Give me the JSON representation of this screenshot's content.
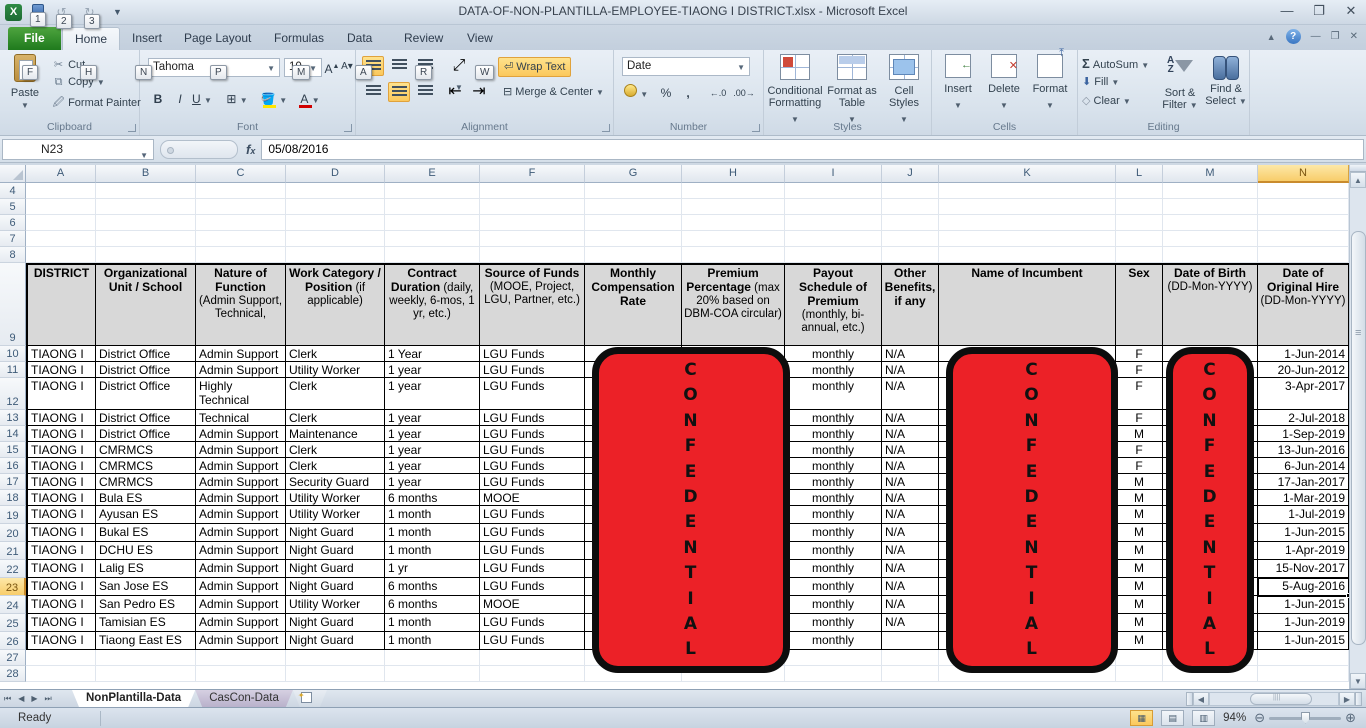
{
  "window": {
    "title": "DATA-OF-NON-PLANTILLA-EMPLOYEE-TIAONG I DISTRICT.xlsx  -  Microsoft Excel",
    "controls": {
      "minimize": "—",
      "restore": "❐",
      "close": "✕"
    }
  },
  "quick_access": {
    "keytips": [
      "1",
      "2",
      "3"
    ]
  },
  "ribbon": {
    "tabs": [
      {
        "label": "File",
        "keytip": "F"
      },
      {
        "label": "Home",
        "keytip": "H"
      },
      {
        "label": "Insert",
        "keytip": "N"
      },
      {
        "label": "Page Layout",
        "keytip": "P"
      },
      {
        "label": "Formulas",
        "keytip": "M"
      },
      {
        "label": "Data",
        "keytip": "A"
      },
      {
        "label": "Review",
        "keytip": "R"
      },
      {
        "label": "View",
        "keytip": "W"
      }
    ],
    "clipboard": {
      "label": "Clipboard",
      "paste": "Paste",
      "cut": "Cut",
      "copy": "Copy",
      "format_painter": "Format Painter"
    },
    "font": {
      "label": "Font",
      "family": "Tahoma",
      "size": "10"
    },
    "alignment": {
      "label": "Alignment",
      "wrap_text": "Wrap Text",
      "merge_center": "Merge & Center"
    },
    "number": {
      "label": "Number",
      "format": "Date"
    },
    "styles": {
      "label": "Styles",
      "conditional": "Conditional Formatting",
      "format_table": "Format as Table",
      "cell_styles": "Cell Styles"
    },
    "cells": {
      "label": "Cells",
      "insert": "Insert",
      "delete": "Delete",
      "format": "Format"
    },
    "editing": {
      "label": "Editing",
      "autosum": "AutoSum",
      "fill": "Fill",
      "clear": "Clear",
      "sort_filter": "Sort & Filter",
      "find_select": "Find & Select"
    }
  },
  "formula_bar": {
    "name_box": "N23",
    "value": "05/08/2016"
  },
  "grid": {
    "columns": [
      "A",
      "B",
      "C",
      "D",
      "E",
      "F",
      "G",
      "H",
      "I",
      "J",
      "K",
      "L",
      "M",
      "N"
    ],
    "selected_column": "N",
    "selected_row": "23",
    "empty_rows_top": [
      "4",
      "5",
      "6",
      "7",
      "8"
    ],
    "header_row_number": "9",
    "empty_rows_bottom": [
      "27",
      "28"
    ],
    "headers": [
      {
        "title": "DISTRICT",
        "note": ""
      },
      {
        "title": "Organizational Unit /  School",
        "note": ""
      },
      {
        "title": "Nature of Function",
        "note": "(Admin Support, Technical,"
      },
      {
        "title": "Work Category / Position",
        "note": "(if applicable)"
      },
      {
        "title": "Contract Duration",
        "note": "(daily, weekly, 6-mos, 1 yr, etc.)"
      },
      {
        "title": "Source of Funds",
        "note": "(MOOE, Project, LGU, Partner, etc.)"
      },
      {
        "title": "Monthly Compensation Rate",
        "note": ""
      },
      {
        "title": "Premium Percentage",
        "note": "(max 20% based on DBM-COA circular)"
      },
      {
        "title": "Payout Schedule of Premium",
        "note": "(monthly, bi-annual, etc.)"
      },
      {
        "title": "Other Benefits, if any",
        "note": ""
      },
      {
        "title": "Name of Incumbent",
        "note": ""
      },
      {
        "title": "Sex",
        "note": ""
      },
      {
        "title": "Date of Birth",
        "note": "(DD-Mon-YYYY)"
      },
      {
        "title": "Date of Original Hire",
        "note": "(DD-Mon-YYYY)"
      }
    ],
    "rows": [
      {
        "n": "10",
        "cells": [
          "TIAONG I",
          "District Office",
          "Admin Support",
          "Clerk",
          "1 Year",
          "LGU Funds",
          "",
          "",
          "monthly",
          "N/A",
          "",
          "F",
          "",
          "1-Jun-2014"
        ]
      },
      {
        "n": "11",
        "cells": [
          "TIAONG I",
          "District Office",
          "Admin Support",
          "Utility Worker",
          "1 year",
          "LGU Funds",
          "",
          "",
          "monthly",
          "N/A",
          "",
          "F",
          "",
          "20-Jun-2012"
        ]
      },
      {
        "n": "12",
        "cells": [
          "TIAONG I",
          "District Office",
          "Highly Technical",
          "Clerk",
          "1 year",
          "LGU Funds",
          "",
          "",
          "monthly",
          "N/A",
          "",
          "F",
          "",
          "3-Apr-2017"
        ]
      },
      {
        "n": "13",
        "cells": [
          "TIAONG I",
          "District Office",
          "Technical",
          "Clerk",
          "1 year",
          "LGU Funds",
          "",
          "",
          "monthly",
          "N/A",
          "",
          "F",
          "",
          "2-Jul-2018"
        ]
      },
      {
        "n": "14",
        "cells": [
          "TIAONG I",
          "District Office",
          "Admin Support",
          "Maintenance",
          "1 year",
          "LGU Funds",
          "",
          "",
          "monthly",
          "N/A",
          "",
          "M",
          "",
          "1-Sep-2019"
        ]
      },
      {
        "n": "15",
        "cells": [
          "TIAONG I",
          "CMRMCS",
          "Admin Support",
          "Clerk",
          "1 year",
          "LGU Funds",
          "",
          "",
          "monthly",
          "N/A",
          "",
          "F",
          "",
          "13-Jun-2016"
        ]
      },
      {
        "n": "16",
        "cells": [
          "TIAONG I",
          "CMRMCS",
          "Admin Support",
          "Clerk",
          "1 year",
          "LGU Funds",
          "",
          "",
          "monthly",
          "N/A",
          "",
          "F",
          "",
          "6-Jun-2014"
        ]
      },
      {
        "n": "17",
        "cells": [
          "TIAONG I",
          "CMRMCS",
          "Admin Support",
          "Security Guard",
          "1 year",
          "LGU Funds",
          "",
          "",
          "monthly",
          "N/A",
          "",
          "M",
          "",
          "17-Jan-2017"
        ]
      },
      {
        "n": "18",
        "cells": [
          "TIAONG I",
          "Bula ES",
          "Admin Support",
          "Utility Worker",
          "6 months",
          "MOOE",
          "",
          "",
          "monthly",
          "N/A",
          "",
          "M",
          "",
          "1-Mar-2019"
        ]
      },
      {
        "n": "19",
        "cells": [
          "TIAONG I",
          "Ayusan ES",
          "Admin Support",
          "Utility Worker",
          "1 month",
          "LGU Funds",
          "",
          "",
          "monthly",
          "N/A",
          "",
          "M",
          "",
          "1-Jul-2019"
        ]
      },
      {
        "n": "20",
        "cells": [
          "TIAONG I",
          "Bukal ES",
          "Admin Support",
          "Night Guard",
          "1 month",
          "LGU Funds",
          "",
          "",
          "monthly",
          "N/A",
          "",
          "M",
          "",
          "1-Jun-2015"
        ]
      },
      {
        "n": "21",
        "cells": [
          "TIAONG I",
          "DCHU ES",
          "Admin Support",
          "Night Guard",
          "1 month",
          "LGU Funds",
          "",
          "",
          "monthly",
          "N/A",
          "",
          "M",
          "",
          "1-Apr-2019"
        ]
      },
      {
        "n": "22",
        "cells": [
          "TIAONG I",
          "Lalig ES",
          "Admin Support",
          "Night Guard",
          "1 yr",
          "LGU Funds",
          "",
          "",
          "monthly",
          "N/A",
          "",
          "M",
          "",
          "15-Nov-2017"
        ]
      },
      {
        "n": "23",
        "cells": [
          "TIAONG I",
          "San Jose ES",
          "Admin Support",
          "Night Guard",
          "6 months",
          "LGU Funds",
          "",
          "",
          "monthly",
          "N/A",
          "",
          "M",
          "",
          "5-Aug-2016"
        ]
      },
      {
        "n": "24",
        "cells": [
          "TIAONG I",
          "San Pedro ES",
          "Admin Support",
          "Utility Worker",
          "6 months",
          "MOOE",
          "",
          "",
          "monthly",
          "N/A",
          "",
          "M",
          "",
          "1-Jun-2015"
        ]
      },
      {
        "n": "25",
        "cells": [
          "TIAONG I",
          "Tamisian ES",
          "Admin Support",
          "Night Guard",
          "1 month",
          "LGU Funds",
          "",
          "",
          "monthly",
          "N/A",
          "",
          "M",
          "",
          "1-Jun-2019"
        ]
      },
      {
        "n": "26",
        "cells": [
          "TIAONG I",
          "Tiaong East ES",
          "Admin Support",
          "Night Guard",
          "1 month",
          "LGU Funds",
          "",
          "",
          "monthly",
          "",
          "",
          "M",
          "",
          "1-Jun-2015"
        ]
      }
    ]
  },
  "overlay": {
    "text": "CONFEDENTIAL",
    "fill": "#ec2127",
    "border": "#0d0d0d"
  },
  "sheet_tabs": {
    "active": "NonPlantilla-Data",
    "inactive": "CasCon-Data"
  },
  "status_bar": {
    "ready": "Ready",
    "zoom": "94%"
  }
}
